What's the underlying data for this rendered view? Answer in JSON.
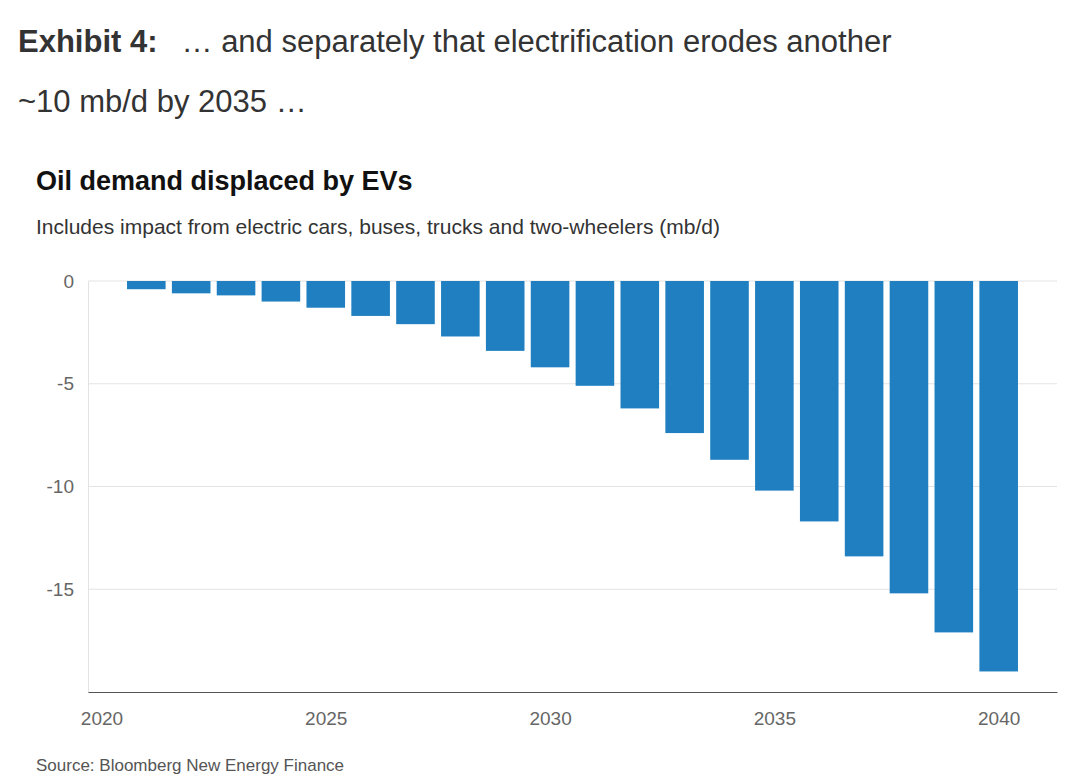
{
  "header": {
    "label": "Exhibit 4:",
    "lines": [
      "… and separately that electrification erodes another",
      "~10 mb/d by 2035 …"
    ]
  },
  "chart_data": {
    "type": "bar",
    "title": "Oil demand displaced by EVs",
    "subtitle": "Includes impact from electric cars, buses, trucks and two-wheelers (mb/d)",
    "source": "Source: Bloomberg New Energy Finance",
    "x": [
      2021,
      2022,
      2023,
      2024,
      2025,
      2026,
      2027,
      2028,
      2029,
      2030,
      2031,
      2032,
      2033,
      2034,
      2035,
      2036,
      2037,
      2038,
      2039,
      2040
    ],
    "values": [
      -0.4,
      -0.6,
      -0.7,
      -1.0,
      -1.3,
      -1.7,
      -2.1,
      -2.7,
      -3.4,
      -4.2,
      -5.1,
      -6.2,
      -7.4,
      -8.7,
      -10.2,
      -11.7,
      -13.4,
      -15.2,
      -17.1,
      -19.0
    ],
    "color": "#1f7fc1",
    "xlim": [
      2019.7,
      2041.3
    ],
    "xticks": [
      2020,
      2025,
      2030,
      2035,
      2040
    ],
    "ylim": [
      -20,
      0
    ],
    "yticks": [
      0,
      -5,
      -10,
      -15
    ],
    "grid": true
  }
}
